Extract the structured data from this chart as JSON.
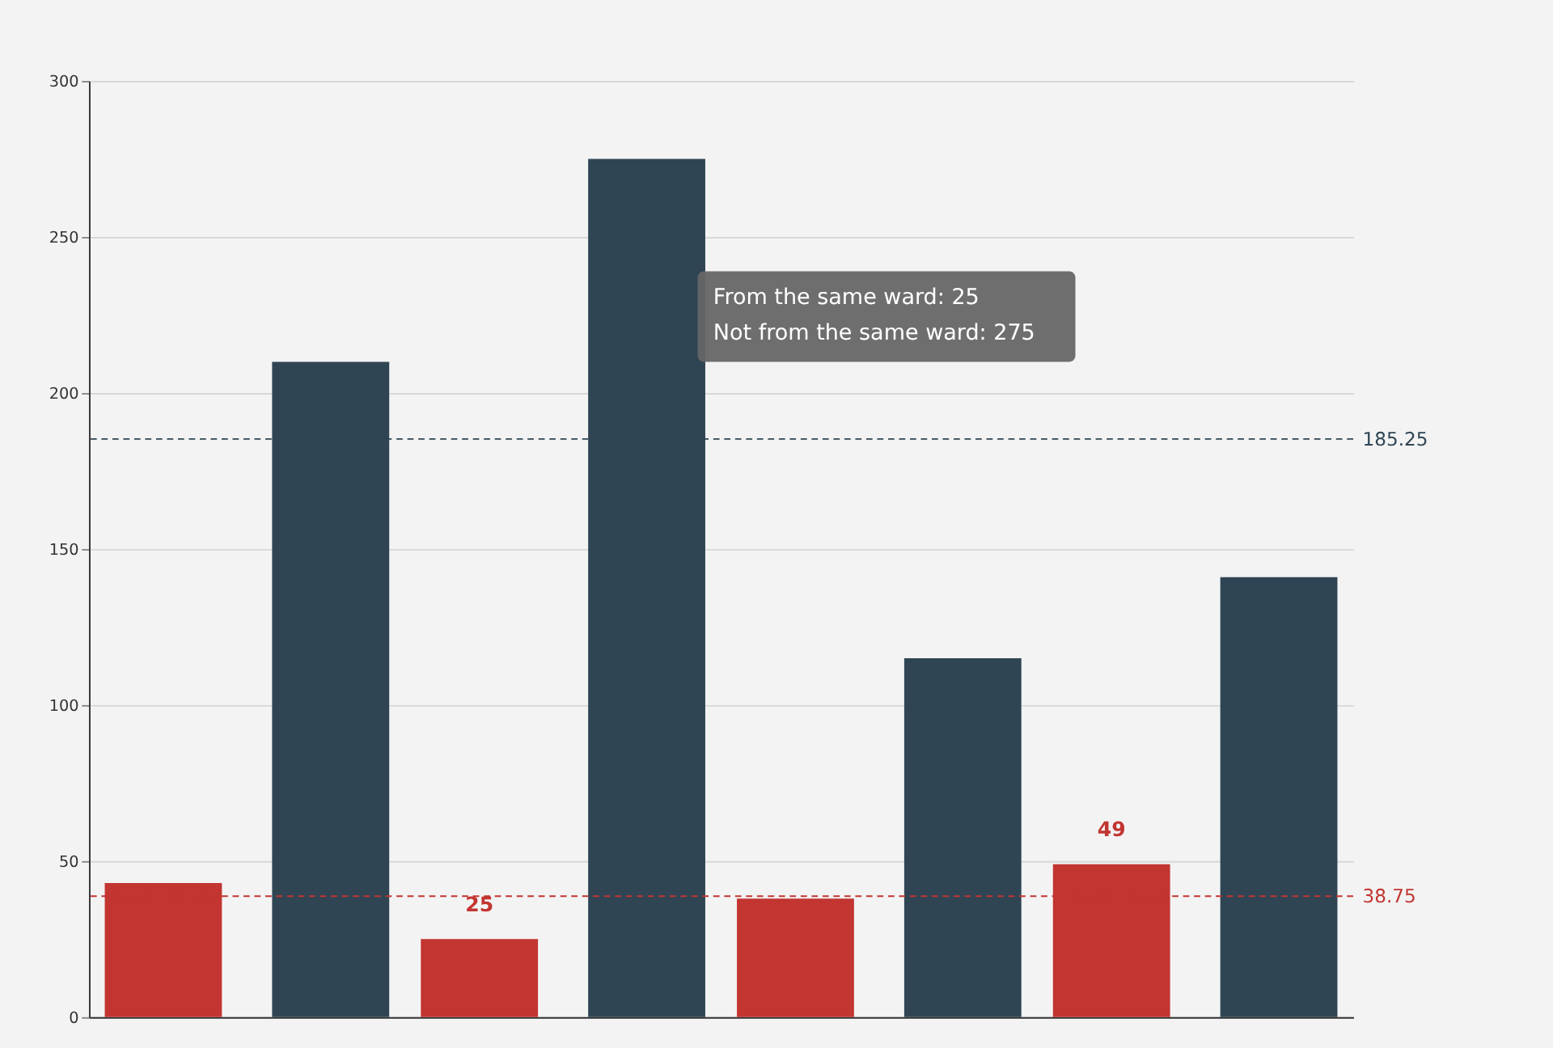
{
  "chart_data": {
    "type": "bar",
    "categories": [
      null,
      null,
      null,
      null
    ],
    "series": [
      {
        "color": "#c23531",
        "values": [
          43,
          25,
          38,
          49
        ],
        "value_labels": [
          null,
          "25",
          null,
          "49"
        ]
      },
      {
        "color": "#2f4554",
        "values": [
          210,
          275,
          115,
          141
        ]
      }
    ],
    "ylim": [
      0,
      300
    ],
    "yticks": [
      0,
      50,
      100,
      150,
      200,
      250,
      300
    ],
    "grid": "y",
    "tick_labels": "y",
    "ref_lines": [
      {
        "axis": "y",
        "value": 38.75,
        "label": "38.75",
        "color": "#c23531",
        "line_style": "dashed"
      },
      {
        "axis": "y",
        "value": 185.25,
        "label": "185.25",
        "color": "#2f4554",
        "line_style": "dashed"
      }
    ],
    "annotations": [
      "From the same ward: 25",
      "Not from the same ward: 275"
    ]
  }
}
